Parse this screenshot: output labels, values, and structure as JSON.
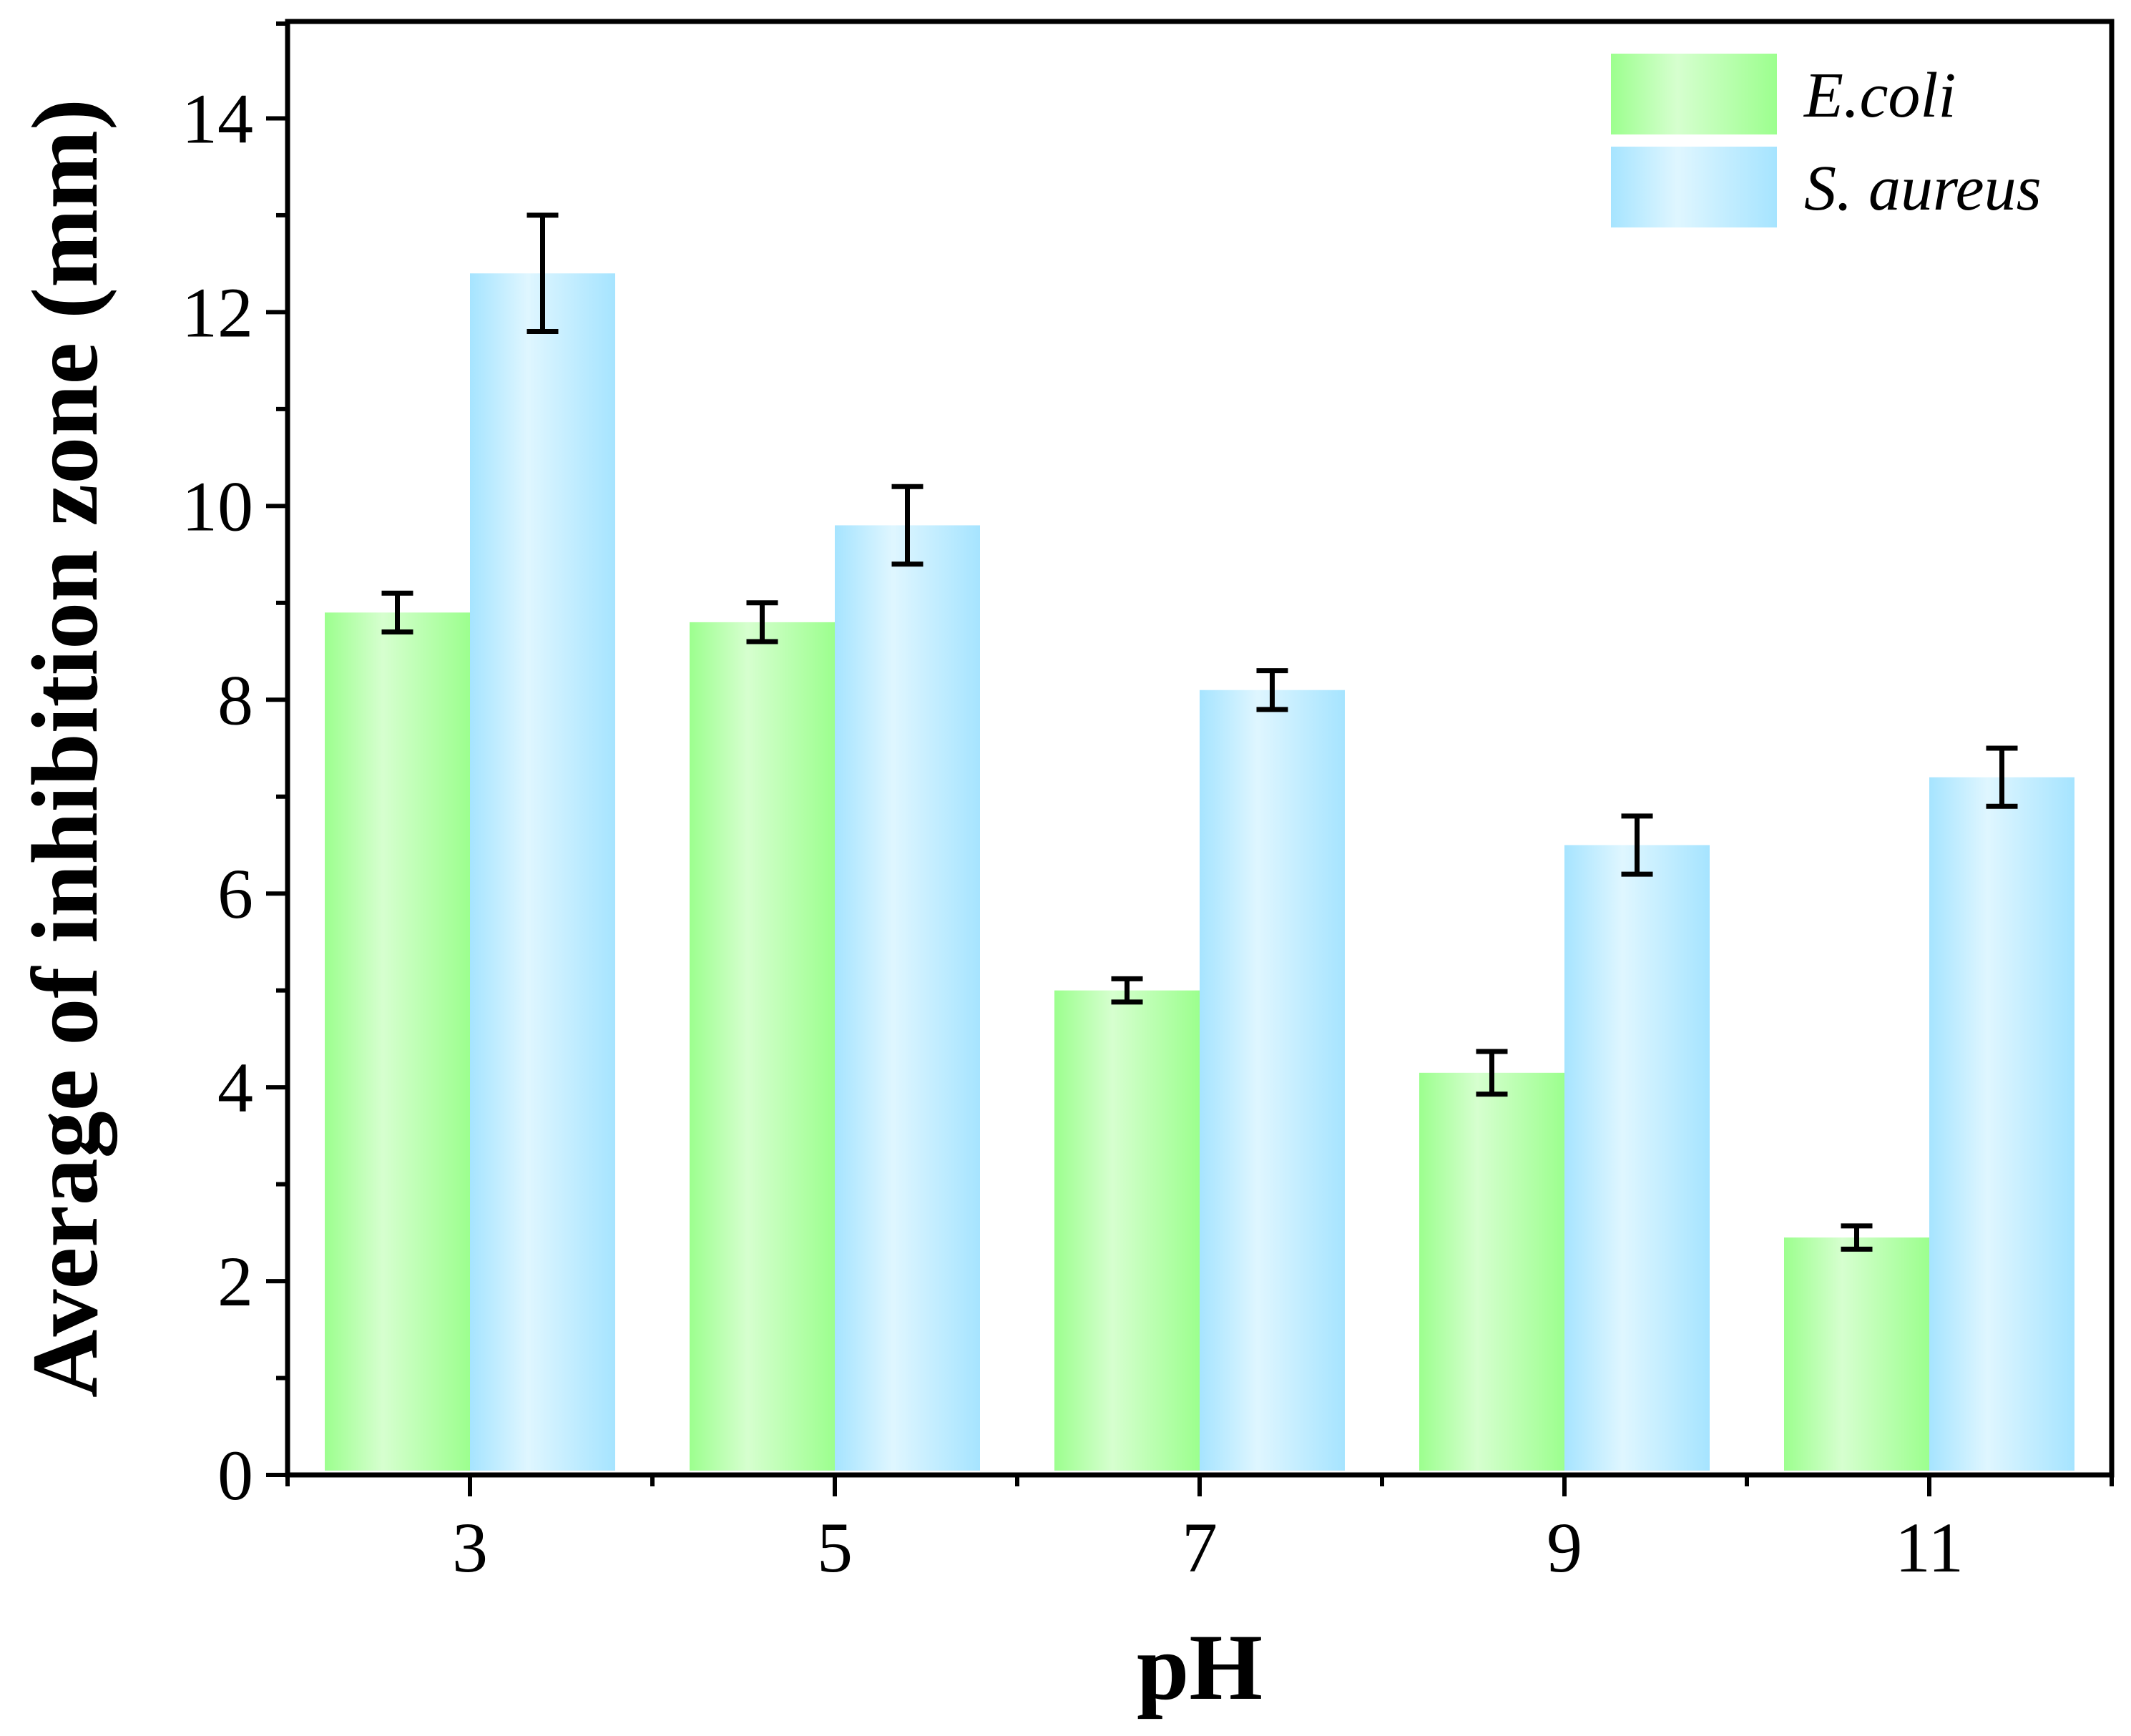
{
  "chart_data": {
    "type": "bar",
    "title": "",
    "xlabel": "pH",
    "ylabel": "Average of inhibition zone (mm)",
    "categories": [
      "3",
      "5",
      "7",
      "9",
      "11"
    ],
    "ylim": [
      0,
      15
    ],
    "yticks": [
      0,
      2,
      4,
      6,
      8,
      10,
      12,
      14
    ],
    "yticklabels": [
      "0",
      "2",
      "4",
      "6",
      "8",
      "10",
      "12",
      "14"
    ],
    "grid": false,
    "legend_position": "top-right",
    "series": [
      {
        "name": "E.coli",
        "color": "#9cff8e",
        "color_light": "#d6ffcf",
        "values": [
          8.9,
          8.8,
          5.0,
          4.15,
          2.45
        ],
        "errors": [
          0.2,
          0.2,
          0.12,
          0.22,
          0.12
        ]
      },
      {
        "name": "S. aureus",
        "color": "#a6e4ff",
        "color_light": "#dff6ff",
        "values": [
          12.4,
          9.8,
          8.1,
          6.5,
          7.2
        ],
        "errors": [
          0.6,
          0.4,
          0.2,
          0.3,
          0.3
        ]
      }
    ]
  }
}
